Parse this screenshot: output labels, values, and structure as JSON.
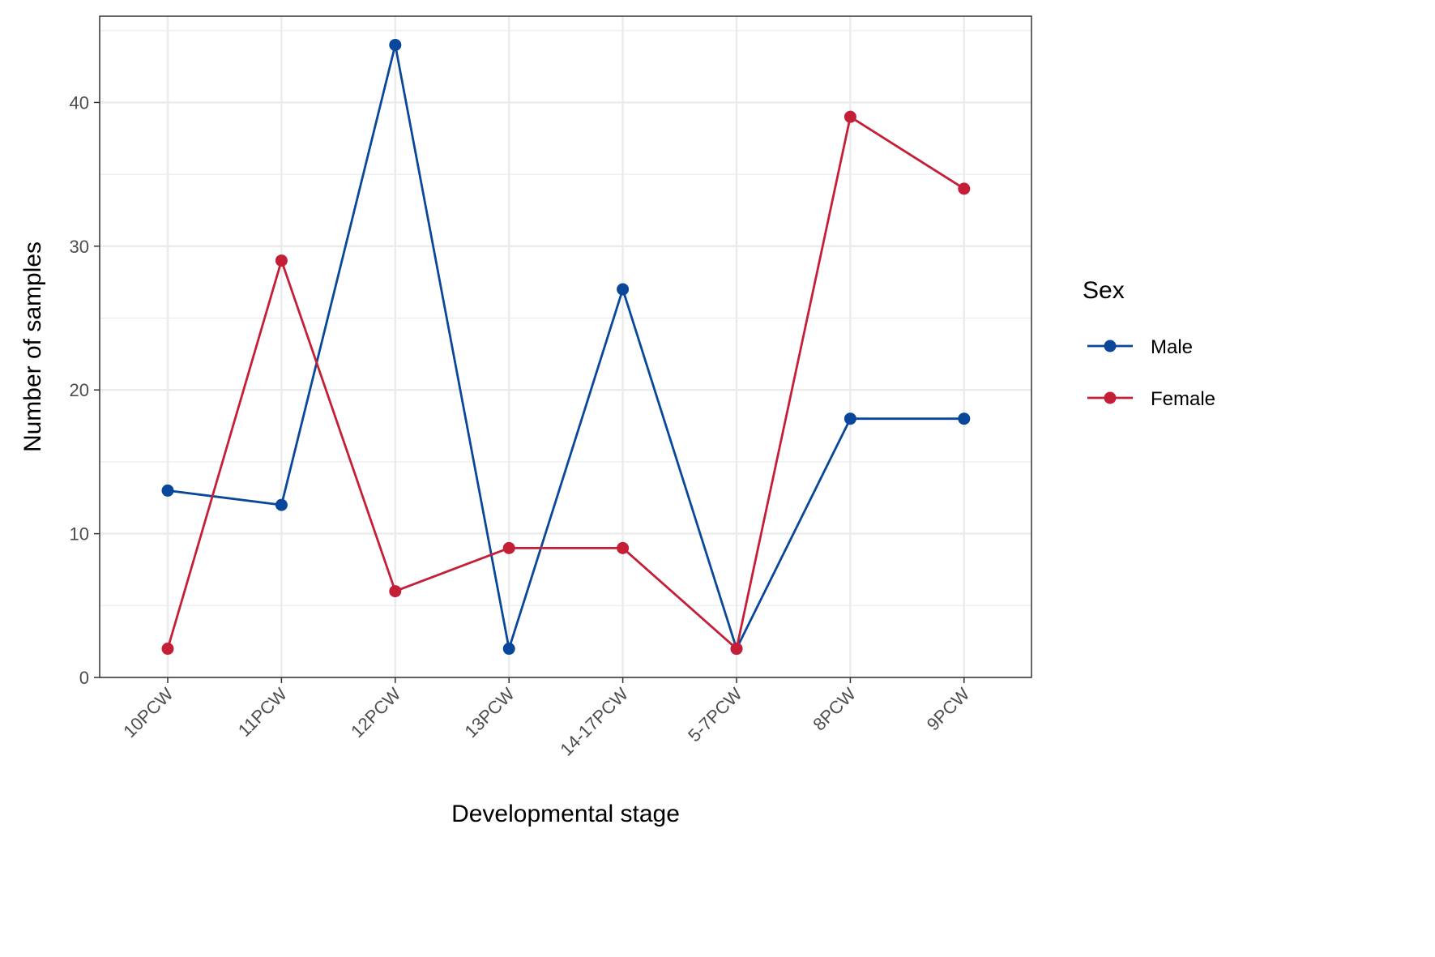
{
  "chart_data": {
    "type": "line",
    "title": "",
    "xlabel": "Developmental stage",
    "ylabel": "Number of samples",
    "categories": [
      "10PCW",
      "11PCW",
      "12PCW",
      "13PCW",
      "14-17PCW",
      "5-7PCW",
      "8PCW",
      "9PCW"
    ],
    "ylim": [
      0,
      46
    ],
    "yticks": [
      0,
      10,
      20,
      30,
      40
    ],
    "grid": true,
    "legend": {
      "title": "Sex",
      "placement": "right"
    },
    "series": [
      {
        "name": "Male",
        "color": "#08479a",
        "values": [
          13,
          12,
          44,
          2,
          27,
          2,
          18,
          18
        ]
      },
      {
        "name": "Female",
        "color": "#c41f37",
        "values": [
          2,
          29,
          6,
          9,
          9,
          2,
          39,
          34
        ]
      }
    ]
  }
}
